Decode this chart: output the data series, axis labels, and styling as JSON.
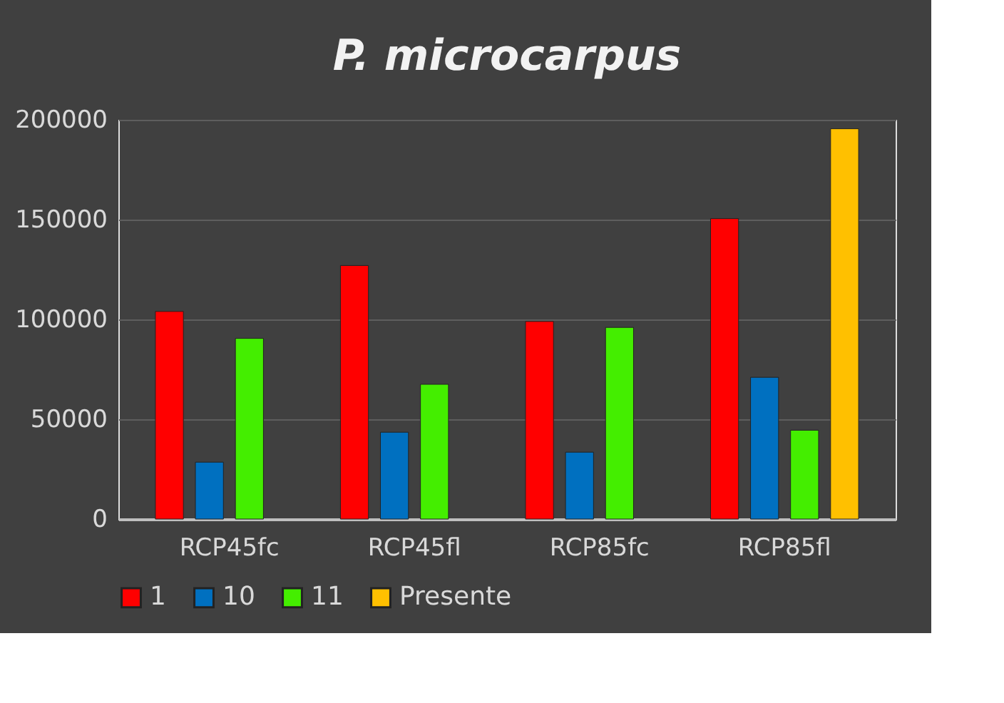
{
  "chart_data": {
    "type": "bar",
    "title": "P. microcarpus",
    "categories": [
      "RCP45fc",
      "RCP45fl",
      "RCP85fc",
      "RCP85fl"
    ],
    "series": [
      {
        "name": "1",
        "color": "#ff0000",
        "values": [
          104000,
          127000,
          99000,
          150500
        ]
      },
      {
        "name": "10",
        "color": "#0070c0",
        "values": [
          28500,
          43500,
          33500,
          71000
        ]
      },
      {
        "name": "11",
        "color": "#44ee00",
        "values": [
          90500,
          67500,
          96000,
          44500
        ]
      },
      {
        "name": "Presente",
        "color": "#ffc000",
        "values": [
          null,
          null,
          null,
          195500
        ]
      }
    ],
    "ylim": [
      0,
      200000
    ],
    "yticks": [
      0,
      50000,
      100000,
      150000,
      200000
    ],
    "grid": "y",
    "legend": "bottom"
  }
}
